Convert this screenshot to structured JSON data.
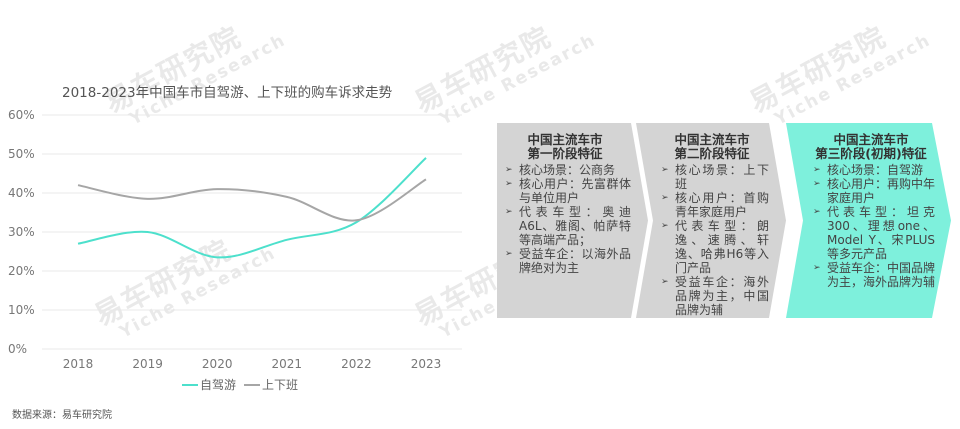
{
  "watermark": {
    "cn": "易车研究院",
    "en": "Yiche Research"
  },
  "chart_data": {
    "type": "line",
    "title": "2018-2023年中国车市自驾游、上下班的购车诉求走势",
    "x": [
      "2018",
      "2019",
      "2020",
      "2021",
      "2022",
      "2023"
    ],
    "yticks": [
      "0%",
      "10%",
      "20%",
      "30%",
      "40%",
      "50%",
      "60%"
    ],
    "ylim": [
      0,
      60
    ],
    "grid": true,
    "legend_position": "bottom",
    "series": [
      {
        "name": "自驾游",
        "color": "#4de0cc",
        "values": [
          27,
          30,
          23.5,
          28,
          32.5,
          49
        ]
      },
      {
        "name": "上下班",
        "color": "#a6a6a6",
        "values": [
          42,
          38.5,
          41,
          39,
          33,
          43.5
        ]
      }
    ]
  },
  "stages": [
    {
      "title_line1": "中国主流车市",
      "title_line2": "第一阶段特征",
      "color": "#d4d4d4",
      "items": [
        "核心场景：公商务",
        "核心用户：先富群体与单位用户",
        "代表车型：奥迪A6L、雅阁、帕萨特等高端产品；",
        "受益车企：以海外品牌绝对为主"
      ]
    },
    {
      "title_line1": "中国主流车市",
      "title_line2": "第二阶段特征",
      "color": "#d4d4d4",
      "items": [
        "核心场景：上下班",
        "核心用户：首购青年家庭用户",
        "代表车型：朗逸、速腾、轩逸、哈弗H6等入门产品",
        "受益车企：海外品牌为主，中国品牌为辅"
      ]
    },
    {
      "title_line1": "中国主流车市",
      "title_line2": "第三阶段(初期)特征",
      "color": "#7ef0dc",
      "items": [
        "核心场景：自驾游",
        "核心用户：再购中年家庭用户",
        "代表车型：坦克300、理想one、Model Y、宋PLUS等多元产品",
        "受益车企：中国品牌为主，海外品牌为辅"
      ]
    }
  ],
  "source": "数据来源：易车研究院"
}
